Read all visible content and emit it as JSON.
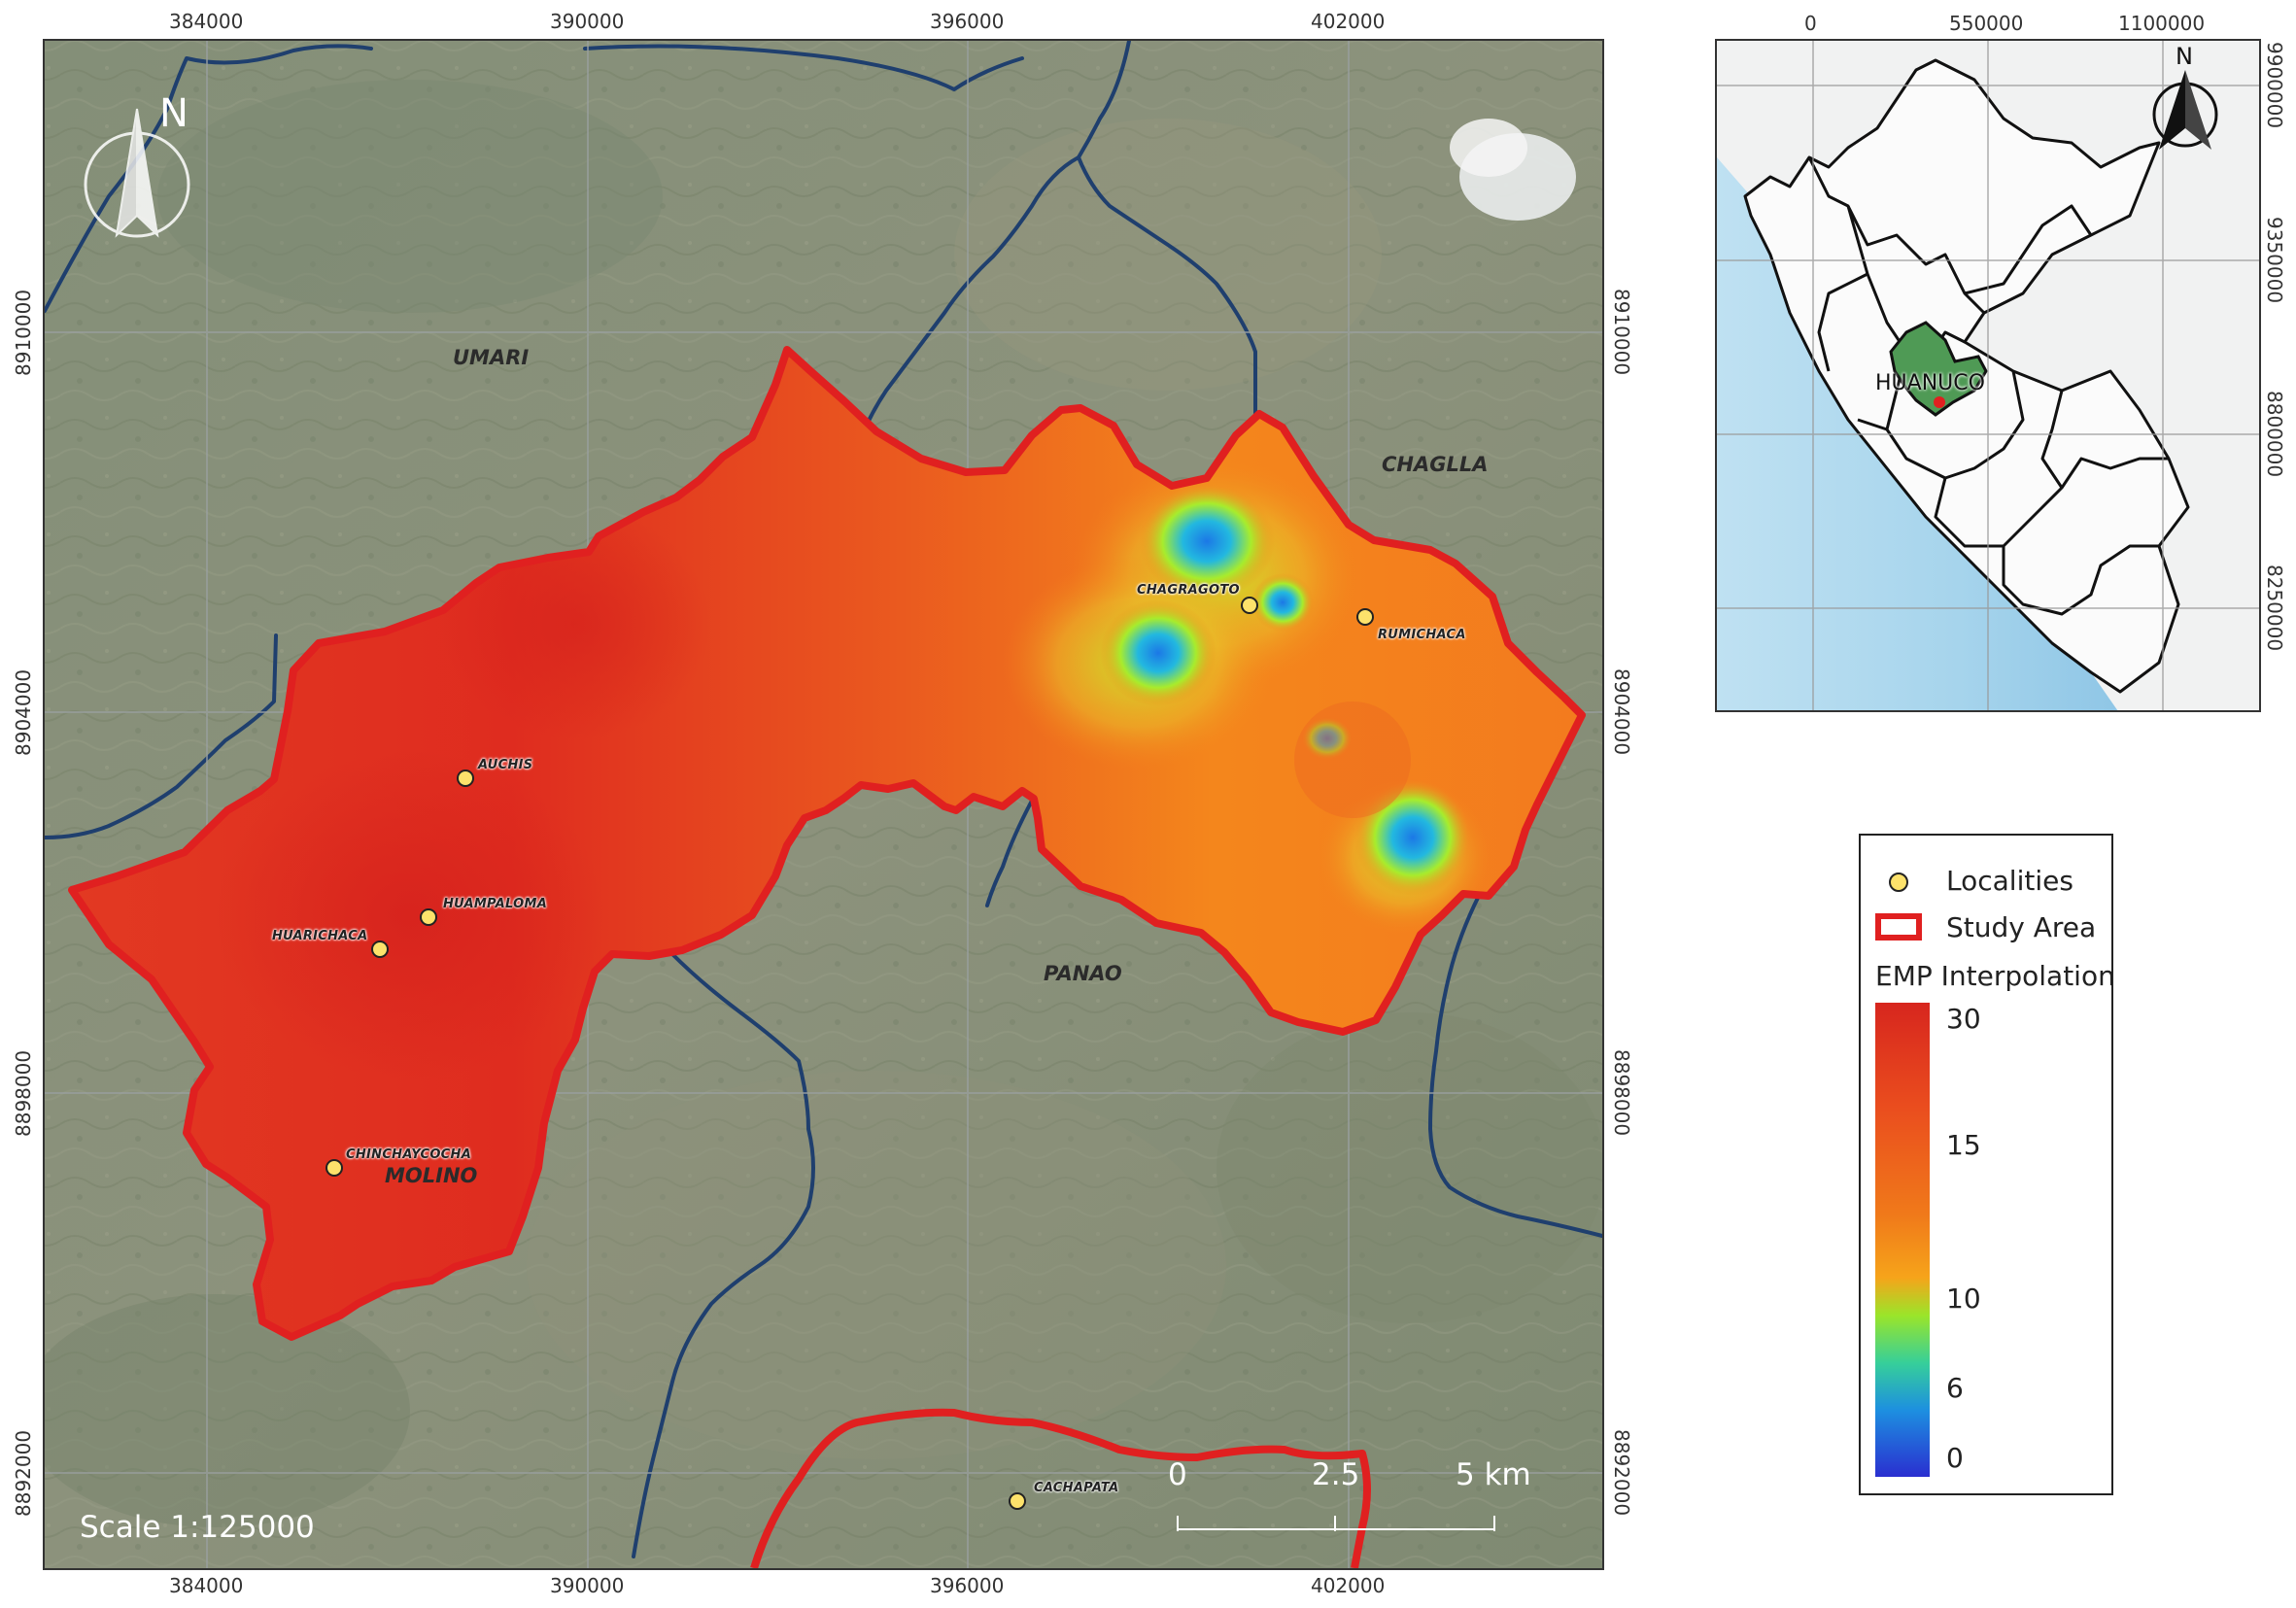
{
  "main_map": {
    "x_ticks": [
      "384000",
      "390000",
      "396000",
      "402000"
    ],
    "y_ticks": [
      "8910000",
      "8904000",
      "8898000",
      "8892000"
    ],
    "north_label": "N",
    "scale_text": "Scale 1:125000",
    "scalebar": {
      "labels": [
        "0",
        "2.5",
        "5 km"
      ]
    },
    "districts": [
      {
        "name": "UMARI"
      },
      {
        "name": "CHAGLLA"
      },
      {
        "name": "PANAO"
      },
      {
        "name": "MOLINO"
      }
    ],
    "localities": [
      {
        "name": "AUCHIS"
      },
      {
        "name": "HUAMPALOMA"
      },
      {
        "name": "HUARICHACA"
      },
      {
        "name": "CHINCHAYCOCHA"
      },
      {
        "name": "CHAGRAGOTO"
      },
      {
        "name": "RUMICHACA"
      },
      {
        "name": "CACHAPATA"
      }
    ]
  },
  "inset_map": {
    "x_ticks": [
      "0",
      "550000",
      "1100000"
    ],
    "y_ticks": [
      "9900000",
      "9350000",
      "8800000",
      "8250000"
    ],
    "north_label": "N",
    "region_label": "HUANUCO"
  },
  "legend": {
    "localities_label": "Localities",
    "study_area_label": "Study Area",
    "interpolation_title": "EMP Interpolation",
    "ramp_values": [
      "30",
      "15",
      "10",
      "6",
      "0"
    ]
  },
  "colors": {
    "boundary": "#e02020",
    "locality_fill": "#fde26b",
    "river": "#1f3f6e",
    "ramp_high": "#d7261e",
    "ramp_mid": "#f07a1a",
    "ramp_low_mid": "#9ae52a",
    "ramp_low": "#1d8fe0",
    "ramp_min": "#2a2fd0"
  }
}
